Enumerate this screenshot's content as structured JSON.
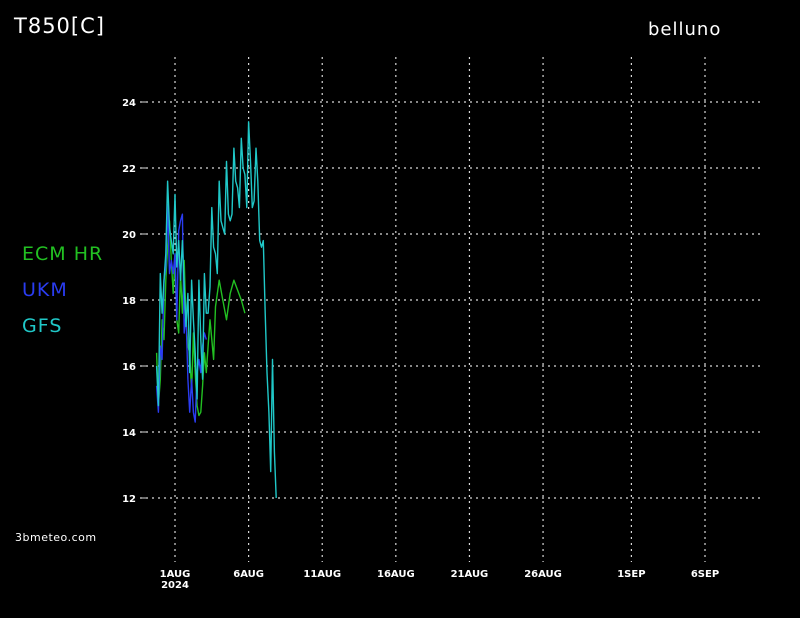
{
  "header": {
    "title": "T850[C]",
    "location": "belluno"
  },
  "credit": "3bmeteo.com",
  "colors": {
    "ECM HR": "#22c022",
    "UKM": "#2a3cf0",
    "GFS": "#20c8c8",
    "grid": "#d8d8d8",
    "background": "#000000"
  },
  "chart_data": {
    "type": "line",
    "title": "T850[C]",
    "xlabel": "",
    "ylabel": "",
    "grid": true,
    "legend_position": "left",
    "x_unit": "date",
    "xlim": [
      "2024-07-30",
      "2024-09-10"
    ],
    "ylim": [
      11,
      25
    ],
    "y_ticks": [
      12,
      14,
      16,
      18,
      20,
      22,
      24
    ],
    "x_ticks": [
      {
        "date": "2024-08-01",
        "label": "1AUG",
        "sublabel": "2024"
      },
      {
        "date": "2024-08-06",
        "label": "6AUG",
        "sublabel": ""
      },
      {
        "date": "2024-08-11",
        "label": "11AUG",
        "sublabel": ""
      },
      {
        "date": "2024-08-16",
        "label": "16AUG",
        "sublabel": ""
      },
      {
        "date": "2024-08-21",
        "label": "21AUG",
        "sublabel": ""
      },
      {
        "date": "2024-08-26",
        "label": "26AUG",
        "sublabel": ""
      },
      {
        "date": "2024-09-01",
        "label": "1SEP",
        "sublabel": ""
      },
      {
        "date": "2024-09-06",
        "label": "6SEP",
        "sublabel": ""
      }
    ],
    "series": [
      {
        "name": "ECM HR",
        "points": [
          [
            "2024-07-30 18:00",
            16.4
          ],
          [
            "2024-07-30 21:00",
            14.8
          ],
          [
            "2024-07-31 00:00",
            15.6
          ],
          [
            "2024-07-31 03:00",
            17.4
          ],
          [
            "2024-07-31 06:00",
            16.8
          ],
          [
            "2024-07-31 09:00",
            18.6
          ],
          [
            "2024-07-31 12:00",
            19.6
          ],
          [
            "2024-07-31 15:00",
            20.4
          ],
          [
            "2024-07-31 18:00",
            19.2
          ],
          [
            "2024-07-31 21:00",
            18.2
          ],
          [
            "2024-08-01 00:00",
            19.2
          ],
          [
            "2024-08-01 03:00",
            17.4
          ],
          [
            "2024-08-01 06:00",
            17.0
          ],
          [
            "2024-08-01 09:00",
            18.8
          ],
          [
            "2024-08-01 12:00",
            17.6
          ],
          [
            "2024-08-01 15:00",
            19.2
          ],
          [
            "2024-08-01 18:00",
            17.4
          ],
          [
            "2024-08-01 21:00",
            16.6
          ],
          [
            "2024-08-02 00:00",
            16.4
          ],
          [
            "2024-08-02 03:00",
            15.2
          ],
          [
            "2024-08-02 06:00",
            17.0
          ],
          [
            "2024-08-02 09:00",
            15.8
          ],
          [
            "2024-08-02 12:00",
            14.8
          ],
          [
            "2024-08-02 15:00",
            14.5
          ],
          [
            "2024-08-02 18:00",
            14.6
          ],
          [
            "2024-08-02 21:00",
            15.4
          ],
          [
            "2024-08-03 00:00",
            16.4
          ],
          [
            "2024-08-03 03:00",
            15.8
          ],
          [
            "2024-08-03 06:00",
            16.6
          ],
          [
            "2024-08-03 09:00",
            17.4
          ],
          [
            "2024-08-03 12:00",
            16.8
          ],
          [
            "2024-08-03 15:00",
            16.2
          ],
          [
            "2024-08-03 18:00",
            17.8
          ],
          [
            "2024-08-04 00:00",
            18.6
          ],
          [
            "2024-08-04 06:00",
            18.0
          ],
          [
            "2024-08-04 12:00",
            17.4
          ],
          [
            "2024-08-04 18:00",
            18.2
          ],
          [
            "2024-08-05 00:00",
            18.6
          ],
          [
            "2024-08-05 06:00",
            18.3
          ],
          [
            "2024-08-05 12:00",
            18.0
          ],
          [
            "2024-08-05 18:00",
            17.6
          ]
        ]
      },
      {
        "name": "UKM",
        "points": [
          [
            "2024-07-30 18:00",
            15.4
          ],
          [
            "2024-07-30 21:00",
            14.6
          ],
          [
            "2024-07-31 00:00",
            16.6
          ],
          [
            "2024-07-31 03:00",
            16.2
          ],
          [
            "2024-07-31 06:00",
            18.6
          ],
          [
            "2024-07-31 09:00",
            19.0
          ],
          [
            "2024-07-31 12:00",
            20.9
          ],
          [
            "2024-07-31 15:00",
            18.8
          ],
          [
            "2024-07-31 18:00",
            19.2
          ],
          [
            "2024-07-31 21:00",
            18.8
          ],
          [
            "2024-08-01 00:00",
            19.4
          ],
          [
            "2024-08-01 03:00",
            17.4
          ],
          [
            "2024-08-01 06:00",
            20.1
          ],
          [
            "2024-08-01 09:00",
            20.4
          ],
          [
            "2024-08-01 12:00",
            20.6
          ],
          [
            "2024-08-01 15:00",
            17.0
          ],
          [
            "2024-08-01 18:00",
            17.6
          ],
          [
            "2024-08-01 21:00",
            15.6
          ],
          [
            "2024-08-02 00:00",
            14.6
          ],
          [
            "2024-08-02 03:00",
            15.6
          ],
          [
            "2024-08-02 06:00",
            14.6
          ],
          [
            "2024-08-02 09:00",
            14.3
          ],
          [
            "2024-08-02 12:00",
            15.8
          ],
          [
            "2024-08-02 15:00",
            16.2
          ],
          [
            "2024-08-02 18:00",
            15.8
          ],
          [
            "2024-08-02 21:00",
            16.6
          ],
          [
            "2024-08-03 00:00",
            17.0
          ],
          [
            "2024-08-03 03:00",
            16.8
          ]
        ]
      },
      {
        "name": "GFS",
        "points": [
          [
            "2024-07-30 18:00",
            16.0
          ],
          [
            "2024-07-30 21:00",
            14.8
          ],
          [
            "2024-07-31 00:00",
            18.8
          ],
          [
            "2024-07-31 03:00",
            17.6
          ],
          [
            "2024-07-31 06:00",
            18.6
          ],
          [
            "2024-07-31 09:00",
            19.4
          ],
          [
            "2024-07-31 12:00",
            21.6
          ],
          [
            "2024-07-31 15:00",
            20.2
          ],
          [
            "2024-07-31 18:00",
            19.8
          ],
          [
            "2024-07-31 21:00",
            19.4
          ],
          [
            "2024-08-01 00:00",
            21.2
          ],
          [
            "2024-08-01 03:00",
            19.0
          ],
          [
            "2024-08-01 06:00",
            19.8
          ],
          [
            "2024-08-01 09:00",
            18.6
          ],
          [
            "2024-08-01 12:00",
            19.8
          ],
          [
            "2024-08-01 15:00",
            18.4
          ],
          [
            "2024-08-01 18:00",
            17.2
          ],
          [
            "2024-08-01 21:00",
            18.2
          ],
          [
            "2024-08-02 00:00",
            15.8
          ],
          [
            "2024-08-02 03:00",
            18.6
          ],
          [
            "2024-08-02 06:00",
            17.4
          ],
          [
            "2024-08-02 09:00",
            16.4
          ],
          [
            "2024-08-02 12:00",
            15.0
          ],
          [
            "2024-08-02 15:00",
            18.6
          ],
          [
            "2024-08-02 18:00",
            16.8
          ],
          [
            "2024-08-02 21:00",
            15.6
          ],
          [
            "2024-08-03 00:00",
            18.8
          ],
          [
            "2024-08-03 03:00",
            17.6
          ],
          [
            "2024-08-03 06:00",
            17.6
          ],
          [
            "2024-08-03 09:00",
            18.4
          ],
          [
            "2024-08-03 12:00",
            20.8
          ],
          [
            "2024-08-03 15:00",
            19.6
          ],
          [
            "2024-08-03 18:00",
            19.4
          ],
          [
            "2024-08-03 21:00",
            18.8
          ],
          [
            "2024-08-04 00:00",
            21.6
          ],
          [
            "2024-08-04 03:00",
            20.4
          ],
          [
            "2024-08-04 06:00",
            20.2
          ],
          [
            "2024-08-04 09:00",
            20.0
          ],
          [
            "2024-08-04 12:00",
            22.2
          ],
          [
            "2024-08-04 15:00",
            20.6
          ],
          [
            "2024-08-04 18:00",
            20.4
          ],
          [
            "2024-08-04 21:00",
            20.6
          ],
          [
            "2024-08-05 00:00",
            22.6
          ],
          [
            "2024-08-05 03:00",
            21.6
          ],
          [
            "2024-08-05 06:00",
            21.4
          ],
          [
            "2024-08-05 09:00",
            20.8
          ],
          [
            "2024-08-05 12:00",
            22.9
          ],
          [
            "2024-08-05 15:00",
            22.0
          ],
          [
            "2024-08-05 18:00",
            21.8
          ],
          [
            "2024-08-05 21:00",
            20.8
          ],
          [
            "2024-08-06 00:00",
            23.4
          ],
          [
            "2024-08-06 03:00",
            22.2
          ],
          [
            "2024-08-06 06:00",
            20.8
          ],
          [
            "2024-08-06 09:00",
            21.0
          ],
          [
            "2024-08-06 12:00",
            22.6
          ],
          [
            "2024-08-06 15:00",
            21.6
          ],
          [
            "2024-08-06 18:00",
            19.8
          ],
          [
            "2024-08-06 21:00",
            19.6
          ],
          [
            "2024-08-07 00:00",
            19.8
          ],
          [
            "2024-08-07 03:00",
            17.6
          ],
          [
            "2024-08-07 06:00",
            15.8
          ],
          [
            "2024-08-07 09:00",
            14.6
          ],
          [
            "2024-08-07 12:00",
            12.8
          ],
          [
            "2024-08-07 15:00",
            16.2
          ],
          [
            "2024-08-07 18:00",
            13.4
          ],
          [
            "2024-08-07 21:00",
            12.0
          ]
        ]
      }
    ]
  }
}
